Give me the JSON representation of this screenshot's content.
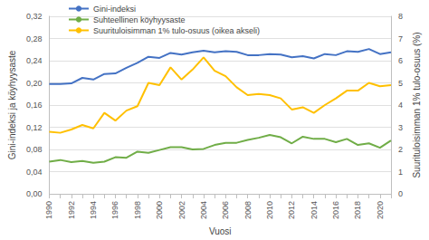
{
  "chart_data": {
    "type": "line",
    "x_label": "Vuosi",
    "y_label": "Gini-indeksi ja köyhyysaste",
    "y2_label": "Suurituloisimman 1% tulo-osuus (%)",
    "categories": [
      "1990",
      null,
      "1992",
      null,
      "1994",
      null,
      "1996",
      null,
      "1998",
      null,
      "2000",
      null,
      "2002",
      null,
      "2004",
      null,
      "2006",
      null,
      "2008",
      null,
      "2010",
      null,
      "2012",
      null,
      "2014",
      null,
      "2016",
      null,
      "2018",
      null,
      "2020",
      null
    ],
    "series": [
      {
        "name": "Gini-indeksi",
        "color": "#4472c4",
        "values": [
          0.198,
          0.198,
          0.199,
          0.209,
          0.206,
          0.216,
          0.217,
          0.227,
          0.236,
          0.247,
          0.245,
          0.254,
          0.251,
          0.255,
          0.258,
          0.255,
          0.257,
          0.256,
          0.25,
          0.25,
          0.252,
          0.251,
          0.246,
          0.248,
          0.244,
          0.252,
          0.25,
          0.257,
          0.256,
          0.261,
          0.252,
          0.255
        ]
      },
      {
        "name": "Suhteellinen köyhyysaste",
        "color": "#70ad47",
        "values": [
          0.058,
          0.061,
          0.057,
          0.059,
          0.056,
          0.058,
          0.066,
          0.065,
          0.076,
          0.074,
          0.079,
          0.084,
          0.084,
          0.08,
          0.081,
          0.088,
          0.092,
          0.092,
          0.097,
          0.101,
          0.106,
          0.102,
          0.091,
          0.103,
          0.099,
          0.099,
          0.093,
          0.099,
          0.088,
          0.091,
          0.083,
          0.096
        ]
      },
      {
        "name": "Suurituloisimman 1% tulo-osuus (oikea akseli)",
        "color": "#ffc000",
        "axis": "y2",
        "values": [
          2.8,
          2.75,
          2.9,
          3.1,
          2.95,
          3.65,
          3.3,
          3.75,
          3.95,
          5.0,
          4.9,
          5.7,
          5.15,
          5.6,
          6.15,
          5.55,
          5.3,
          4.8,
          4.45,
          4.5,
          4.45,
          4.3,
          3.8,
          3.9,
          3.65,
          4.0,
          4.3,
          4.65,
          4.65,
          5.0,
          4.85,
          4.9
        ]
      }
    ],
    "ylim": [
      0,
      0.32
    ],
    "yticks": [
      {
        "value": 0,
        "label": "0,00"
      },
      {
        "value": 0.04,
        "label": "0,04"
      },
      {
        "value": 0.08,
        "label": "0,08"
      },
      {
        "value": 0.12,
        "label": "0,12"
      },
      {
        "value": 0.16,
        "label": "0,16"
      },
      {
        "value": 0.2,
        "label": "0,20"
      },
      {
        "value": 0.24,
        "label": "0,24"
      },
      {
        "value": 0.28,
        "label": "0,28"
      },
      {
        "value": 0.32,
        "label": "0,32"
      }
    ],
    "y2lim": [
      0,
      8
    ],
    "y2ticks": [
      0,
      1,
      2,
      3,
      4,
      5,
      6,
      7,
      8
    ],
    "grid": true,
    "legend": "top-left"
  }
}
